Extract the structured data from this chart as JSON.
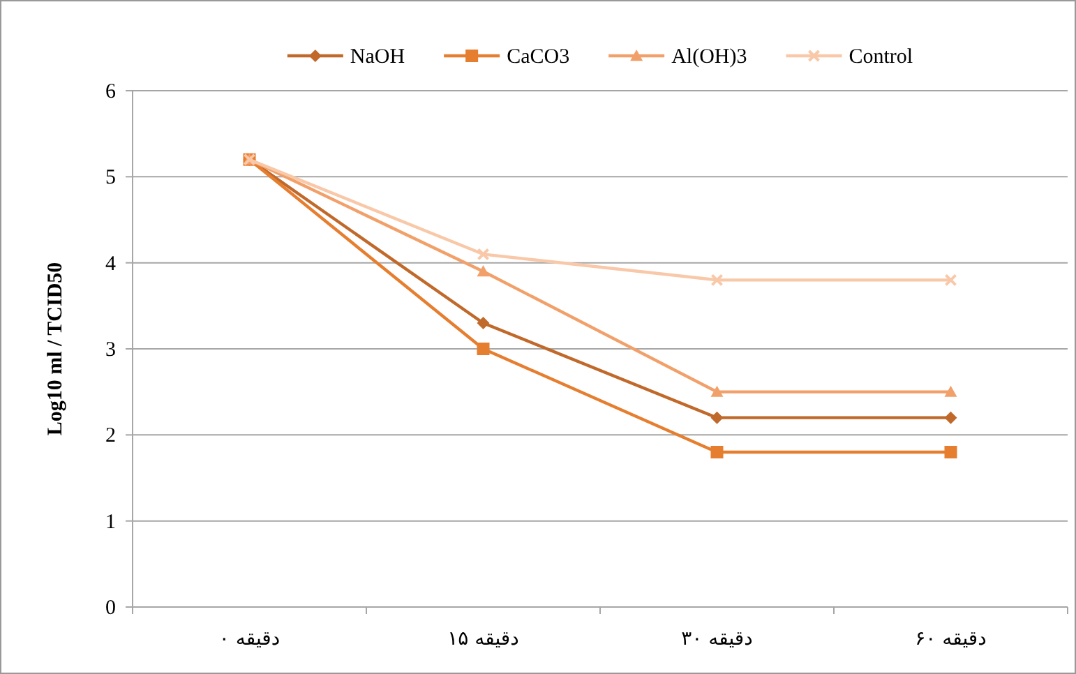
{
  "chart_data": {
    "type": "line",
    "ylabel": "Log10  ml / TCID50",
    "categories": [
      "دقیقه ۰",
      "دقیقه ۱۵",
      "دقیقه ۳۰",
      "دقیقه ۶۰"
    ],
    "series": [
      {
        "name": "NaOH",
        "color": "#c0692a",
        "marker": "diamond",
        "values": [
          5.2,
          3.3,
          2.2,
          2.2
        ]
      },
      {
        "name": "CaCO3",
        "color": "#e67e30",
        "marker": "square",
        "values": [
          5.2,
          3.0,
          1.8,
          1.8
        ]
      },
      {
        "name": "Al(OH)3",
        "color": "#f2a06a",
        "marker": "triangle",
        "values": [
          5.2,
          3.9,
          2.5,
          2.5
        ]
      },
      {
        "name": "Control",
        "color": "#f8c8a8",
        "marker": "cross",
        "values": [
          5.2,
          4.1,
          3.8,
          3.8
        ]
      }
    ],
    "ylim": [
      0,
      6
    ],
    "yticks": [
      0,
      1,
      2,
      3,
      4,
      5,
      6
    ],
    "grid": "y",
    "legend": "top"
  }
}
